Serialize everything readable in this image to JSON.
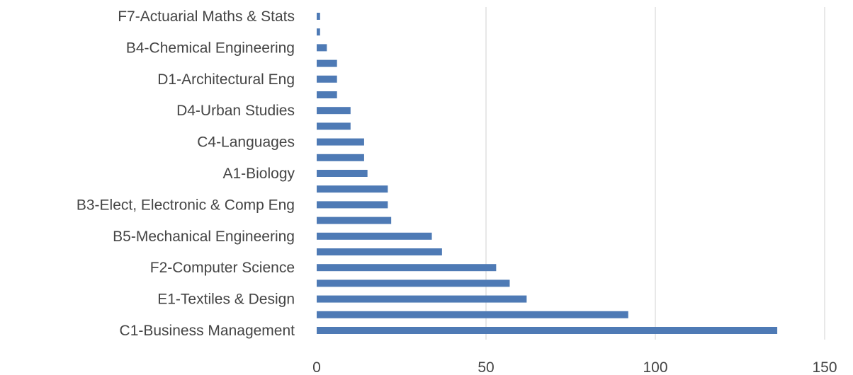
{
  "chart_data": {
    "type": "bar",
    "orientation": "horizontal",
    "bar_color": "#4e7ab5",
    "grid": true,
    "legend": "none",
    "xlim": [
      0,
      150
    ],
    "x_ticks": [
      "0",
      "50",
      "100",
      "150"
    ],
    "categories": [
      "C1-Business Management",
      "",
      "E1-Textiles & Design",
      "",
      "F2-Computer Science",
      "",
      "B5-Mechanical Engineering",
      "",
      "B3-Elect, Electronic & Comp Eng",
      "",
      "A1-Biology",
      "",
      "C4-Languages",
      "",
      "D4-Urban Studies",
      "",
      "D1-Architectural Eng",
      "",
      "B4-Chemical Engineering",
      "",
      "F7-Actuarial Maths & Stats"
    ],
    "values": [
      136,
      92,
      62,
      57,
      53,
      37,
      34,
      22,
      21,
      21,
      15,
      14,
      14,
      10,
      10,
      6,
      6,
      6,
      3,
      1,
      1
    ]
  }
}
